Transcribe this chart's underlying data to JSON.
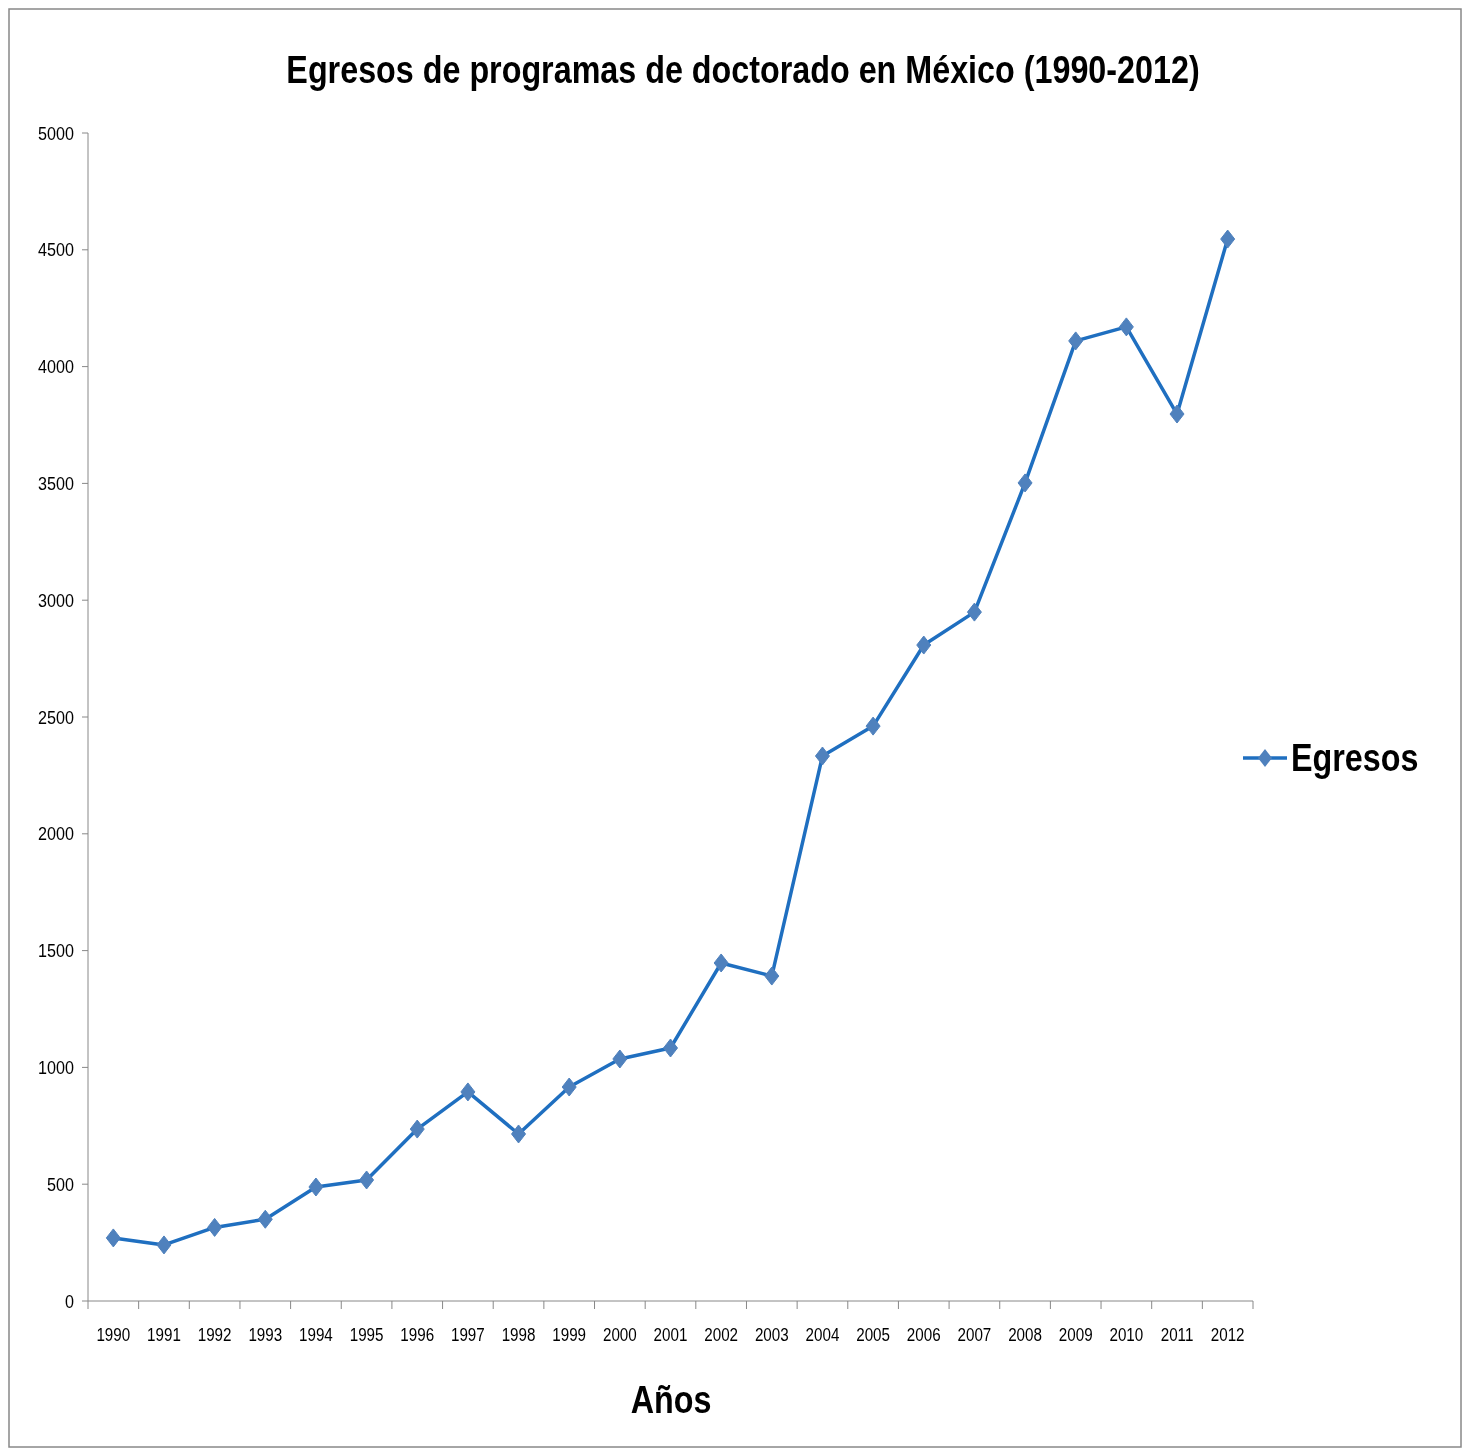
{
  "chart_data": {
    "type": "line",
    "title": "Egresos de programas de doctorado en México (1990-2012)",
    "xlabel": "Años",
    "categories": [
      "1990",
      "1991",
      "1992",
      "1993",
      "1994",
      "1995",
      "1996",
      "1997",
      "1998",
      "1999",
      "2000",
      "2001",
      "2002",
      "2003",
      "2004",
      "2005",
      "2006",
      "2007",
      "2008",
      "2009",
      "2010",
      "2011",
      "2012"
    ],
    "series": [
      {
        "name": "Egresos",
        "color": "#1f6fc0",
        "values": [
          270,
          240,
          315,
          350,
          488,
          518,
          736,
          895,
          715,
          916,
          1036,
          1083,
          1447,
          1391,
          2333,
          2461,
          2808,
          2949,
          3502,
          4110,
          4170,
          3797,
          4546
        ]
      }
    ],
    "ylim": [
      0,
      5000
    ],
    "yticks": [
      0,
      500,
      1000,
      1500,
      2000,
      2500,
      3000,
      3500,
      4000,
      4500,
      5000
    ],
    "grid": false,
    "legend": "right",
    "marker": "diamond",
    "line_style": "solid"
  }
}
